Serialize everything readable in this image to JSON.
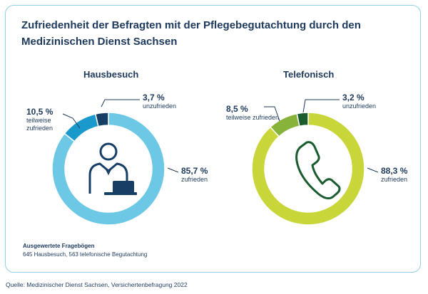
{
  "title": "Zufriedenheit der Befragten mit der Pflegebegutachtung durch den Medizinischen Dienst Sachsen",
  "note": {
    "heading": "Ausgewertete Fragebögen",
    "text": "645 Hausbesuch, 563 telefonische Begutachtung"
  },
  "source": "Quelle: Medizinischer Dienst Sachsen, Versichertenbefragung 2022",
  "icons": [
    "person-at-laptop-icon",
    "telephone-handset-icon"
  ],
  "chart_data": [
    {
      "type": "pie",
      "title": "Hausbesuch",
      "slices": [
        {
          "value": 85.7,
          "label": "85,7 %",
          "sub": [
            "zufrieden"
          ],
          "color": "#6dc8e6"
        },
        {
          "value": 10.5,
          "label": "10,5 %",
          "sub": [
            "teilweise",
            "zufrieden"
          ],
          "color": "#1a99cc"
        },
        {
          "value": 3.7,
          "label": "3,7 %",
          "sub": [
            "unzufrieden"
          ],
          "color": "#173f66"
        }
      ]
    },
    {
      "type": "pie",
      "title": "Telefonisch",
      "slices": [
        {
          "value": 88.3,
          "label": "88,3 %",
          "sub": [
            "zufrieden"
          ],
          "color": "#c8d63a"
        },
        {
          "value": 8.5,
          "label": "8,5 %",
          "sub": [
            "teilweise zufrieden"
          ],
          "color": "#87b33a"
        },
        {
          "value": 3.2,
          "label": "3,2 %",
          "sub": [
            "unzufrieden"
          ],
          "color": "#1a5c2e"
        }
      ]
    }
  ]
}
